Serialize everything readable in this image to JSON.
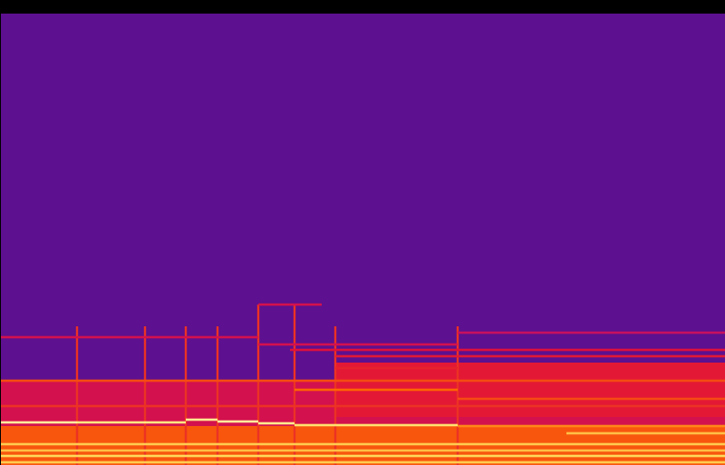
{
  "chart_data": {
    "type": "spectrogram",
    "xlim": [
      0,
      800
    ],
    "ylim": [
      0,
      513
    ],
    "tick_labels": false,
    "color_lim": [
      -120,
      0
    ],
    "regions": [
      {
        "x0": 0,
        "x1": 800,
        "y0": 0,
        "y1": 498,
        "level": -80
      },
      {
        "x0": 0,
        "x1": 800,
        "y0": 498,
        "y1": 513,
        "level": -120
      },
      {
        "x0": 0,
        "x1": 800,
        "y0": 0,
        "y1": 93,
        "level": -55
      },
      {
        "x0": 370,
        "x1": 800,
        "y0": 53,
        "y1": 113,
        "level": -50
      },
      {
        "x0": 0,
        "x1": 800,
        "y0": 0,
        "y1": 43,
        "level": -38
      }
    ],
    "lines": [
      {
        "x0": 0,
        "x1": 285,
        "y": 141,
        "level": -55
      },
      {
        "x0": 285,
        "x1": 505,
        "y": 133,
        "level": -55
      },
      {
        "x0": 285,
        "x1": 355,
        "y": 177,
        "level": -55
      },
      {
        "x0": 505,
        "x1": 800,
        "y": 146,
        "level": -58
      },
      {
        "x0": 320,
        "x1": 800,
        "y": 127,
        "level": -52
      },
      {
        "x0": 370,
        "x1": 800,
        "y": 120,
        "level": -50
      },
      {
        "x0": 370,
        "x1": 505,
        "y": 107,
        "level": -48
      },
      {
        "x0": 0,
        "x1": 800,
        "y": 93,
        "level": -40
      },
      {
        "x0": 325,
        "x1": 505,
        "y": 83,
        "level": -35
      },
      {
        "x0": 505,
        "x1": 800,
        "y": 73,
        "level": -40
      },
      {
        "x0": 0,
        "x1": 800,
        "y": 65,
        "level": -45
      },
      {
        "x0": 0,
        "x1": 85,
        "y": 47,
        "level": -8
      },
      {
        "x0": 85,
        "x1": 205,
        "y": 47,
        "level": -12
      },
      {
        "x0": 205,
        "x1": 240,
        "y": 50,
        "level": -10
      },
      {
        "x0": 240,
        "x1": 285,
        "y": 48,
        "level": -8
      },
      {
        "x0": 285,
        "x1": 325,
        "y": 46,
        "level": -10
      },
      {
        "x0": 325,
        "x1": 505,
        "y": 44,
        "level": -15
      },
      {
        "x0": 505,
        "x1": 800,
        "y": 43,
        "level": -30
      },
      {
        "x0": 625,
        "x1": 800,
        "y": 35,
        "level": -22
      },
      {
        "x0": 0,
        "x1": 800,
        "y": 23,
        "level": -20
      },
      {
        "x0": 0,
        "x1": 800,
        "y": 16,
        "level": -22
      },
      {
        "x0": 0,
        "x1": 800,
        "y": 10,
        "level": -18
      },
      {
        "x0": 0,
        "x1": 800,
        "y": 3,
        "level": -20
      }
    ],
    "onsets": [
      {
        "x": 85,
        "y_top": 153,
        "level": -45
      },
      {
        "x": 160,
        "y_top": 153,
        "level": -45
      },
      {
        "x": 205,
        "y_top": 153,
        "level": -45
      },
      {
        "x": 240,
        "y_top": 153,
        "level": -45
      },
      {
        "x": 285,
        "y_top": 177,
        "level": -45
      },
      {
        "x": 325,
        "y_top": 177,
        "level": -45
      },
      {
        "x": 370,
        "y_top": 153,
        "level": -45
      },
      {
        "x": 505,
        "y_top": 153,
        "level": -45
      }
    ]
  }
}
